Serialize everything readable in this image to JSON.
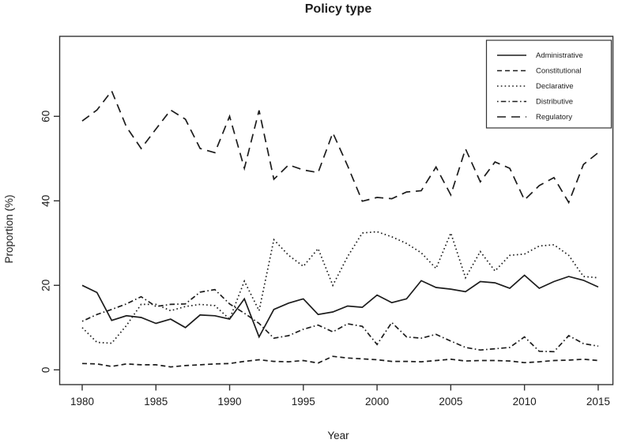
{
  "chart_data": {
    "type": "line",
    "title": "Policy type",
    "xlabel": "Year",
    "ylabel": "Proportion (%)",
    "line_color": "#1c1c1c",
    "background_color": "#ffffff",
    "grid": false,
    "legend_position": "top-right",
    "x_ticks": [
      "1980",
      "1985",
      "1990",
      "1995",
      "2000",
      "2005",
      "2010",
      "2015"
    ],
    "x_tick_years": [
      1980,
      1985,
      1990,
      1995,
      2000,
      2005,
      2010,
      2015
    ],
    "y_ticks": [
      "0",
      "20",
      "40",
      "60"
    ],
    "y_tick_values": [
      0,
      20,
      40,
      60
    ],
    "xlim": [
      1978.5,
      2016
    ],
    "ylim": [
      -3.5,
      79
    ],
    "x": [
      1980,
      1981,
      1982,
      1983,
      1984,
      1985,
      1986,
      1987,
      1988,
      1989,
      1990,
      1991,
      1992,
      1993,
      1994,
      1995,
      1996,
      1997,
      1998,
      1999,
      2000,
      2001,
      2002,
      2003,
      2004,
      2005,
      2006,
      2007,
      2008,
      2009,
      2010,
      2011,
      2012,
      2013,
      2014,
      2015
    ],
    "series": [
      {
        "name": "Administrative",
        "line_style": "solid",
        "values": [
          20.0,
          18.3,
          11.7,
          12.8,
          12.4,
          11.0,
          12.0,
          10.0,
          13.0,
          12.8,
          12.0,
          16.8,
          7.8,
          14.3,
          15.8,
          16.8,
          13.1,
          13.7,
          15.1,
          14.8,
          17.7,
          15.9,
          16.8,
          21.1,
          19.5,
          19.1,
          18.5,
          20.9,
          20.6,
          19.3,
          22.4,
          19.3,
          20.9,
          22.1,
          21.2,
          19.6
        ]
      },
      {
        "name": "Constitutional",
        "line_style": "dashed",
        "values": [
          1.5,
          1.4,
          0.8,
          1.4,
          1.2,
          1.2,
          0.7,
          1.0,
          1.2,
          1.4,
          1.5,
          2.0,
          2.4,
          2.0,
          1.9,
          2.2,
          1.6,
          3.2,
          2.8,
          2.6,
          2.4,
          2.0,
          2.0,
          1.9,
          2.2,
          2.5,
          2.1,
          2.2,
          2.2,
          2.1,
          1.7,
          1.9,
          2.2,
          2.3,
          2.5,
          2.2
        ]
      },
      {
        "name": "Declarative",
        "line_style": "dotted",
        "values": [
          10.0,
          6.5,
          6.3,
          10.5,
          15.5,
          15.5,
          14.0,
          15.0,
          15.5,
          15.2,
          12.0,
          21.0,
          14.0,
          30.8,
          27.1,
          24.5,
          28.7,
          20.0,
          26.8,
          32.4,
          32.7,
          31.5,
          29.9,
          27.7,
          24.0,
          32.4,
          21.8,
          28.0,
          23.4,
          27.1,
          27.4,
          29.3,
          29.6,
          27.1,
          22.1,
          21.8
        ]
      },
      {
        "name": "Distributive",
        "line_style": "dashdot",
        "values": [
          11.5,
          13.1,
          14.3,
          15.6,
          17.3,
          15.0,
          15.5,
          15.6,
          18.4,
          19.0,
          15.6,
          13.4,
          11.0,
          7.5,
          8.1,
          9.6,
          10.6,
          9.0,
          10.9,
          10.3,
          6.0,
          11.2,
          7.8,
          7.5,
          8.4,
          6.8,
          5.3,
          4.7,
          5.0,
          5.3,
          7.8,
          4.4,
          4.3,
          8.1,
          6.2,
          5.6
        ]
      },
      {
        "name": "Regulatory",
        "line_style": "longdash",
        "values": [
          58.9,
          61.5,
          66.0,
          57.5,
          52.4,
          57.0,
          61.5,
          59.3,
          52.4,
          51.4,
          60.0,
          47.7,
          61.4,
          45.1,
          48.5,
          47.3,
          46.7,
          56.1,
          48.3,
          39.9,
          40.8,
          40.5,
          42.1,
          42.4,
          48.0,
          41.4,
          52.3,
          44.5,
          49.2,
          47.7,
          40.2,
          43.6,
          45.5,
          39.6,
          48.6,
          51.4
        ]
      }
    ]
  }
}
